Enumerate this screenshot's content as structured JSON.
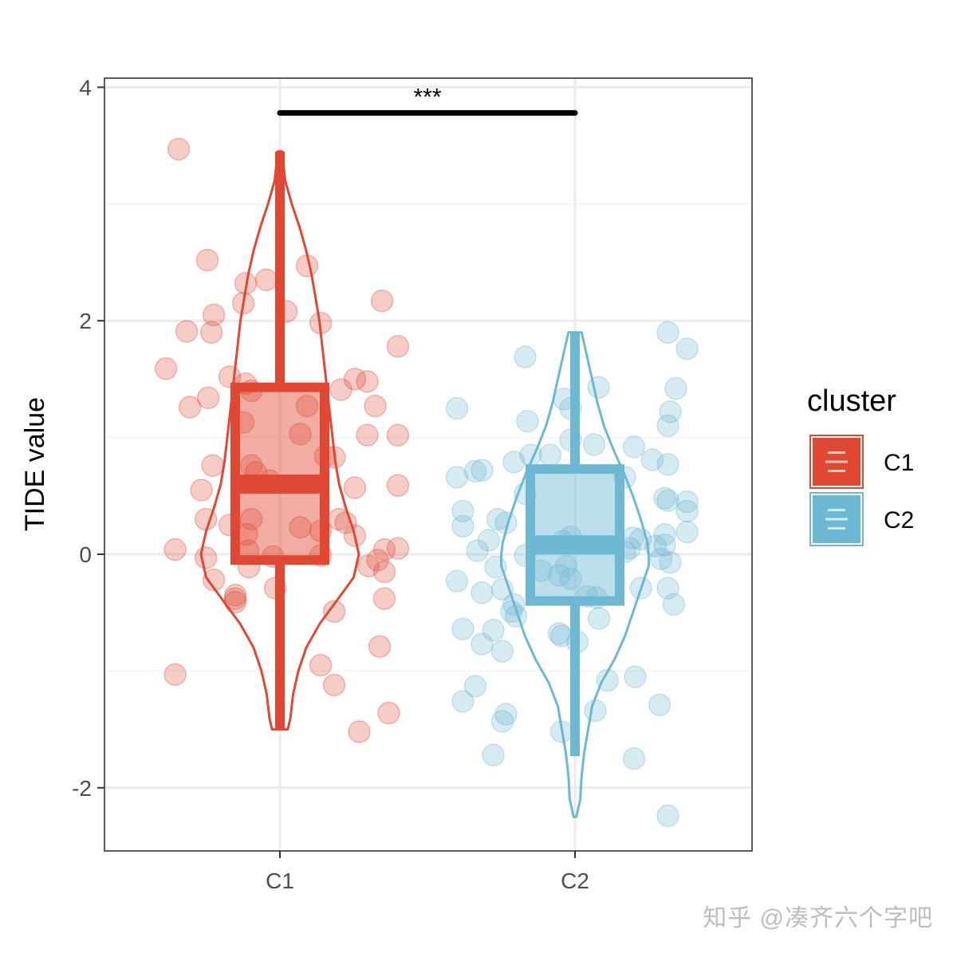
{
  "chart_data": {
    "type": "violin-box-jitter",
    "ylabel": "TIDE value",
    "xlabel": "",
    "categories": [
      "C1",
      "C2"
    ],
    "ylim": [
      -2.5,
      4.1
    ],
    "y_ticks": [
      -2,
      0,
      2,
      4
    ],
    "y_tick_labels": [
      "-2",
      "0",
      "2",
      "4"
    ],
    "grid": true,
    "legend": {
      "title": "cluster",
      "position": "right",
      "entries": [
        "C1",
        "C2"
      ]
    },
    "colors": {
      "C1": "#e04834",
      "C2": "#6db8d2",
      "significance": "#000000"
    },
    "significance": {
      "label": "***",
      "y": 3.78,
      "from": "C1",
      "to": "C2"
    },
    "series": [
      {
        "name": "C1",
        "box": {
          "min": -1.5,
          "q1": -0.05,
          "median": 0.6,
          "q3": 1.43,
          "max": 3.45
        },
        "violin": {
          "y": [
            -1.5,
            -1.4,
            -1.2,
            -1.0,
            -0.8,
            -0.6,
            -0.4,
            -0.2,
            0.0,
            0.2,
            0.4,
            0.6,
            0.8,
            1.0,
            1.2,
            1.4,
            1.6,
            1.8,
            2.0,
            2.2,
            2.4,
            2.6,
            2.8,
            3.0,
            3.2,
            3.45
          ],
          "density": [
            0.06,
            0.08,
            0.1,
            0.14,
            0.2,
            0.3,
            0.43,
            0.56,
            0.6,
            0.56,
            0.5,
            0.45,
            0.42,
            0.4,
            0.38,
            0.36,
            0.34,
            0.32,
            0.3,
            0.27,
            0.24,
            0.2,
            0.15,
            0.09,
            0.04,
            0.015
          ]
        },
        "points": [
          {
            "x": -0.343,
            "y": 3.47
          },
          {
            "x": -0.246,
            "y": 2.52
          },
          {
            "x": -0.046,
            "y": 2.35
          },
          {
            "x": 0.092,
            "y": 2.47
          },
          {
            "x": -0.116,
            "y": 2.32
          },
          {
            "x": -0.124,
            "y": 2.15
          },
          {
            "x": 0.022,
            "y": 2.08
          },
          {
            "x": 0.138,
            "y": 1.98
          },
          {
            "x": 0.346,
            "y": 2.17
          },
          {
            "x": -0.316,
            "y": 1.91
          },
          {
            "x": -0.224,
            "y": 2.05
          },
          {
            "x": -0.232,
            "y": 1.9
          },
          {
            "x": 0.4,
            "y": 1.78
          },
          {
            "x": -0.386,
            "y": 1.59
          },
          {
            "x": -0.17,
            "y": 1.52
          },
          {
            "x": -0.116,
            "y": 1.46
          },
          {
            "x": -0.097,
            "y": 1.4
          },
          {
            "x": -0.305,
            "y": 1.26
          },
          {
            "x": -0.243,
            "y": 1.34
          },
          {
            "x": 0.092,
            "y": 1.27
          },
          {
            "x": 0.207,
            "y": 1.41
          },
          {
            "x": 0.254,
            "y": 1.5
          },
          {
            "x": 0.296,
            "y": 1.48
          },
          {
            "x": 0.323,
            "y": 1.27
          },
          {
            "x": -0.124,
            "y": 1.13
          },
          {
            "x": 0.069,
            "y": 1.03
          },
          {
            "x": 0.296,
            "y": 1.02
          },
          {
            "x": 0.4,
            "y": 1.02
          },
          {
            "x": -0.228,
            "y": 0.76
          },
          {
            "x": 0.154,
            "y": 0.84
          },
          {
            "x": 0.185,
            "y": 0.83
          },
          {
            "x": -0.097,
            "y": 0.76
          },
          {
            "x": -0.081,
            "y": 0.7
          },
          {
            "x": -0.035,
            "y": 0.63
          },
          {
            "x": -0.266,
            "y": 0.55
          },
          {
            "x": 0.254,
            "y": 0.57
          },
          {
            "x": 0.4,
            "y": 0.59
          },
          {
            "x": -0.251,
            "y": 0.3
          },
          {
            "x": -0.17,
            "y": 0.25
          },
          {
            "x": -0.112,
            "y": 0.17
          },
          {
            "x": -0.097,
            "y": 0.3
          },
          {
            "x": 0.069,
            "y": 0.23
          },
          {
            "x": 0.138,
            "y": 0.2
          },
          {
            "x": 0.2,
            "y": 0.3
          },
          {
            "x": 0.223,
            "y": 0.27
          },
          {
            "x": 0.254,
            "y": 0.16
          },
          {
            "x": -0.355,
            "y": 0.04
          },
          {
            "x": -0.251,
            "y": -0.03
          },
          {
            "x": -0.108,
            "y": 0.03
          },
          {
            "x": -0.024,
            "y": -0.02
          },
          {
            "x": 0.138,
            "y": -0.01
          },
          {
            "x": 0.354,
            "y": 0.04
          },
          {
            "x": 0.4,
            "y": 0.05
          },
          {
            "x": 0.3,
            "y": -0.1
          },
          {
            "x": 0.354,
            "y": -0.15
          },
          {
            "x": -0.105,
            "y": -0.11
          },
          {
            "x": 0.331,
            "y": -0.05
          },
          {
            "x": -0.224,
            "y": -0.22
          },
          {
            "x": -0.016,
            "y": -0.29
          },
          {
            "x": -0.151,
            "y": -0.35
          },
          {
            "x": -0.151,
            "y": -0.38
          },
          {
            "x": 0.354,
            "y": -0.38
          },
          {
            "x": -0.151,
            "y": -0.41
          },
          {
            "x": 0.184,
            "y": -0.49
          },
          {
            "x": 0.338,
            "y": -0.79
          },
          {
            "x": -0.355,
            "y": -1.03
          },
          {
            "x": 0.138,
            "y": -0.95
          },
          {
            "x": 0.184,
            "y": -1.12
          },
          {
            "x": 0.369,
            "y": -1.36
          },
          {
            "x": 0.269,
            "y": -1.52
          }
        ]
      },
      {
        "name": "C2",
        "box": {
          "min": -1.73,
          "q1": -0.4,
          "median": 0.08,
          "q3": 0.73,
          "max": 1.9
        },
        "violin": {
          "y": [
            -2.25,
            -2.1,
            -1.9,
            -1.7,
            -1.5,
            -1.3,
            -1.1,
            -0.9,
            -0.7,
            -0.5,
            -0.3,
            -0.1,
            0.0,
            0.1,
            0.3,
            0.5,
            0.7,
            0.9,
            1.1,
            1.3,
            1.5,
            1.7,
            1.9
          ],
          "density": [
            0.01,
            0.04,
            0.05,
            0.07,
            0.1,
            0.13,
            0.2,
            0.3,
            0.38,
            0.44,
            0.5,
            0.56,
            0.56,
            0.55,
            0.5,
            0.44,
            0.37,
            0.29,
            0.22,
            0.17,
            0.13,
            0.09,
            0.05
          ]
        },
        "points": [
          {
            "x": 0.315,
            "y": 1.9
          },
          {
            "x": 0.38,
            "y": 1.76
          },
          {
            "x": -0.169,
            "y": 1.69
          },
          {
            "x": 0.08,
            "y": 1.43
          },
          {
            "x": 0.342,
            "y": 1.42
          },
          {
            "x": -0.037,
            "y": 1.33
          },
          {
            "x": -0.4,
            "y": 1.25
          },
          {
            "x": -0.015,
            "y": 1.25
          },
          {
            "x": 0.323,
            "y": 1.22
          },
          {
            "x": -0.161,
            "y": 1.14
          },
          {
            "x": 0.315,
            "y": 1.1
          },
          {
            "x": -0.015,
            "y": 0.98
          },
          {
            "x": 0.065,
            "y": 0.94
          },
          {
            "x": 0.2,
            "y": 0.92
          },
          {
            "x": -0.15,
            "y": 0.85
          },
          {
            "x": -0.084,
            "y": 0.85
          },
          {
            "x": -0.207,
            "y": 0.79
          },
          {
            "x": 0.262,
            "y": 0.81
          },
          {
            "x": 0.315,
            "y": 0.77
          },
          {
            "x": -0.315,
            "y": 0.72
          },
          {
            "x": -0.4,
            "y": 0.66
          },
          {
            "x": -0.338,
            "y": 0.71
          },
          {
            "x": 0.169,
            "y": 0.66
          },
          {
            "x": -0.169,
            "y": 0.52
          },
          {
            "x": 0.304,
            "y": 0.48
          },
          {
            "x": 0.38,
            "y": 0.45
          },
          {
            "x": -0.38,
            "y": 0.37
          },
          {
            "x": 0.315,
            "y": 0.46
          },
          {
            "x": 0.38,
            "y": 0.37
          },
          {
            "x": -0.262,
            "y": 0.3
          },
          {
            "x": -0.234,
            "y": 0.27
          },
          {
            "x": -0.38,
            "y": 0.24
          },
          {
            "x": -0.292,
            "y": 0.12
          },
          {
            "x": -0.015,
            "y": 0.15
          },
          {
            "x": 0.196,
            "y": 0.14
          },
          {
            "x": 0.222,
            "y": 0.13
          },
          {
            "x": 0.304,
            "y": 0.17
          },
          {
            "x": 0.38,
            "y": 0.19
          },
          {
            "x": -0.331,
            "y": 0.03
          },
          {
            "x": -0.042,
            "y": 0.11
          },
          {
            "x": 0.185,
            "y": 0.05
          },
          {
            "x": 0.273,
            "y": 0.07
          },
          {
            "x": 0.304,
            "y": 0.08
          },
          {
            "x": -0.169,
            "y": -0.01
          },
          {
            "x": 0.169,
            "y": 0.02
          },
          {
            "x": 0.292,
            "y": -0.04
          },
          {
            "x": 0.323,
            "y": -0.07
          },
          {
            "x": -0.269,
            "y": -0.11
          },
          {
            "x": -0.115,
            "y": -0.14
          },
          {
            "x": -0.054,
            "y": -0.18
          },
          {
            "x": -0.03,
            "y": -0.1
          },
          {
            "x": -0.015,
            "y": -0.21
          },
          {
            "x": -0.4,
            "y": -0.23
          },
          {
            "x": -0.315,
            "y": -0.33
          },
          {
            "x": -0.246,
            "y": -0.3
          },
          {
            "x": 0.04,
            "y": -0.36
          },
          {
            "x": 0.073,
            "y": -0.37
          },
          {
            "x": 0.223,
            "y": -0.29
          },
          {
            "x": 0.315,
            "y": -0.29
          },
          {
            "x": -0.207,
            "y": -0.43
          },
          {
            "x": 0.335,
            "y": -0.43
          },
          {
            "x": -0.215,
            "y": -0.49
          },
          {
            "x": -0.2,
            "y": -0.53
          },
          {
            "x": 0.081,
            "y": -0.55
          },
          {
            "x": -0.38,
            "y": -0.64
          },
          {
            "x": -0.277,
            "y": -0.65
          },
          {
            "x": -0.054,
            "y": -0.68
          },
          {
            "x": -0.046,
            "y": -0.7
          },
          {
            "x": 0.008,
            "y": -0.75
          },
          {
            "x": -0.315,
            "y": -0.77
          },
          {
            "x": -0.246,
            "y": -0.83
          },
          {
            "x": 0.11,
            "y": -1.08
          },
          {
            "x": 0.204,
            "y": -1.05
          },
          {
            "x": -0.338,
            "y": -1.13
          },
          {
            "x": -0.38,
            "y": -1.26
          },
          {
            "x": 0.069,
            "y": -1.34
          },
          {
            "x": -0.234,
            "y": -1.37
          },
          {
            "x": -0.246,
            "y": -1.43
          },
          {
            "x": 0.287,
            "y": -1.29
          },
          {
            "x": -0.046,
            "y": -1.52
          },
          {
            "x": -0.277,
            "y": -1.72
          },
          {
            "x": 0.2,
            "y": -1.75
          },
          {
            "x": 0.315,
            "y": -2.24
          }
        ]
      }
    ]
  },
  "watermark": "知乎 @凑齐六个字吧"
}
